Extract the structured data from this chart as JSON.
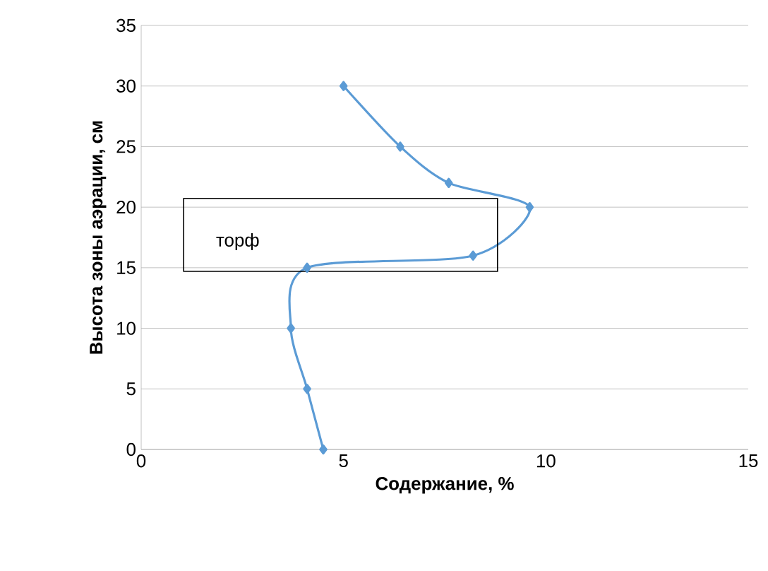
{
  "chart_data": {
    "type": "line",
    "xlabel": "Содержание, %",
    "ylabel": "Высота зоны аэрации, см",
    "x": [
      4.5,
      4.1,
      3.7,
      4.1,
      8.2,
      9.6,
      7.6,
      6.4,
      5.0
    ],
    "series": [
      {
        "color": "#5b9bd5",
        "values": [
          0,
          5,
          10,
          15,
          16,
          20,
          22,
          25,
          30
        ]
      }
    ],
    "xlim": [
      0,
      15
    ],
    "xticks": [
      0,
      5,
      10,
      15
    ],
    "ylim": [
      0,
      35
    ],
    "yticks": [
      0,
      5,
      10,
      15,
      20,
      25,
      30,
      35
    ],
    "grid": "y",
    "marker": "diamond",
    "line_style": "solid",
    "annotations": [
      "торф"
    ]
  }
}
